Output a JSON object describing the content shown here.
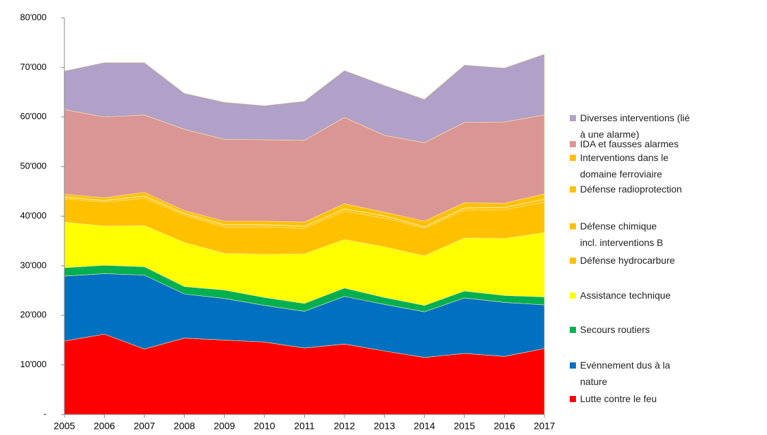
{
  "chart_data": {
    "type": "stacked_area",
    "categories": [
      "2005",
      "2006",
      "2007",
      "2008",
      "2009",
      "2010",
      "2011",
      "2012",
      "2013",
      "2014",
      "2015",
      "2016",
      "2017"
    ],
    "ylim": [
      0,
      80000
    ],
    "yticks": [
      {
        "value": 0,
        "label": "-"
      },
      {
        "value": 10000,
        "label": "10'000"
      },
      {
        "value": 20000,
        "label": "20'000"
      },
      {
        "value": 30000,
        "label": "30'000"
      },
      {
        "value": 40000,
        "label": "40'000"
      },
      {
        "value": 50000,
        "label": "50'000"
      },
      {
        "value": 60000,
        "label": "60'000"
      },
      {
        "value": 70000,
        "label": "70'000"
      },
      {
        "value": 80000,
        "label": "80'000"
      }
    ],
    "series": [
      {
        "name": "Lutte contre le feu",
        "color": "#ff0000",
        "values": [
          14800,
          16200,
          13200,
          15400,
          15000,
          14600,
          13400,
          14200,
          12800,
          11500,
          12300,
          11700,
          13300
        ]
      },
      {
        "name": "Evénnement dus à la\nnature",
        "color": "#0070c0",
        "values": [
          13100,
          12200,
          14900,
          8900,
          8400,
          7400,
          7400,
          9600,
          9400,
          9200,
          11200,
          10900,
          8800
        ]
      },
      {
        "name": "Secours routiers",
        "color": "#00b050",
        "values": [
          1700,
          1700,
          1700,
          1500,
          1700,
          1600,
          1600,
          1700,
          1400,
          1300,
          1400,
          1400,
          1600
        ]
      },
      {
        "name": "Assistance technique",
        "color": "#ffff00",
        "values": [
          9200,
          7900,
          8300,
          8900,
          7400,
          8700,
          10000,
          9800,
          10200,
          10000,
          10700,
          11500,
          13000
        ]
      },
      {
        "name": "Défense hydrocarbure",
        "color": "#ffc000",
        "values": [
          4700,
          4800,
          5500,
          5500,
          5300,
          5500,
          5100,
          5700,
          5800,
          5500,
          5600,
          5800,
          6100
        ]
      },
      {
        "name": "Défense chimique\nincl. interventions B",
        "color": "#ffc000",
        "values": [
          300,
          300,
          400,
          300,
          400,
          400,
          400,
          400,
          400,
          300,
          400,
          400,
          500
        ]
      },
      {
        "name": "Défense radioprotection",
        "color": "#ffc000",
        "values": [
          100,
          100,
          100,
          100,
          100,
          100,
          100,
          100,
          100,
          100,
          100,
          100,
          200
        ]
      },
      {
        "name": "Interventions dans le\ndomaine ferroviaire",
        "color": "#ffc000",
        "values": [
          500,
          500,
          700,
          500,
          700,
          700,
          800,
          1000,
          700,
          1100,
          1000,
          800,
          1000
        ]
      },
      {
        "name": "IDA et fausses alarmes",
        "color": "#da9694",
        "values": [
          17100,
          16300,
          15600,
          16400,
          16500,
          16400,
          16500,
          17400,
          15500,
          15800,
          16200,
          16400,
          15900
        ]
      },
      {
        "name": "Diverses interventions (lié\nà une alarme)",
        "color": "#b1a0c7",
        "values": [
          7800,
          11000,
          10600,
          7300,
          7500,
          6900,
          7900,
          9500,
          10100,
          8800,
          11600,
          10900,
          12300
        ]
      }
    ]
  }
}
